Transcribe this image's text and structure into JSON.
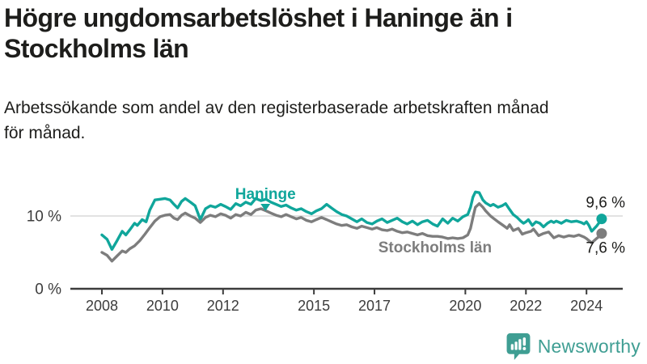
{
  "header": {
    "title_lines": [
      "Högre ungdomsarbetslöshet i Haninge än i",
      "Stockholms län"
    ],
    "subtitle_lines": [
      "Arbetssökande som andel av den registerbaserade arbetskraften månad",
      "för månad."
    ]
  },
  "chart_data": {
    "type": "line",
    "title": "Högre ungdomsarbetslöshet i Haninge än i Stockholms län",
    "subtitle": "Arbetssökande som andel av den registerbaserade arbetskraften månad för månad.",
    "xlabel": "",
    "ylabel": "",
    "grid": "y-10-only",
    "legend_position": "inline-annotations",
    "x_axis": {
      "range": [
        2007.85,
        2024.75
      ],
      "ticks": [
        2008,
        2010,
        2012,
        2015,
        2017,
        2020,
        2022,
        2024
      ]
    },
    "y_axis": {
      "range": [
        0,
        15
      ],
      "ticks": [
        {
          "value": 0,
          "label": "0 %"
        },
        {
          "value": 10,
          "label": "10 %"
        }
      ]
    },
    "annotations": [
      {
        "label": "Haninge",
        "x_year": 2013.4,
        "y_value": 13.0,
        "arrow": true,
        "color": "#10a69b"
      },
      {
        "label": "Stockholms län",
        "x_year": 2019.0,
        "y_value": 5.65,
        "arrow": false,
        "color": "#7d7d7d"
      }
    ],
    "series": [
      {
        "name": "Haninge",
        "color": "#10a69b",
        "end_label": "9,6 %",
        "end_value": 9.6,
        "end_label_placement": "above",
        "points": [
          [
            2008.0,
            7.4
          ],
          [
            2008.17,
            6.8
          ],
          [
            2008.33,
            5.4
          ],
          [
            2008.5,
            6.6
          ],
          [
            2008.67,
            7.9
          ],
          [
            2008.79,
            7.4
          ],
          [
            2008.92,
            8.1
          ],
          [
            2009.08,
            9.0
          ],
          [
            2009.17,
            8.7
          ],
          [
            2009.33,
            9.5
          ],
          [
            2009.46,
            9.2
          ],
          [
            2009.58,
            10.8
          ],
          [
            2009.75,
            12.2
          ],
          [
            2009.92,
            12.3
          ],
          [
            2010.08,
            12.4
          ],
          [
            2010.25,
            12.2
          ],
          [
            2010.38,
            11.6
          ],
          [
            2010.5,
            11.1
          ],
          [
            2010.63,
            12.0
          ],
          [
            2010.75,
            12.4
          ],
          [
            2010.92,
            11.9
          ],
          [
            2011.08,
            11.4
          ],
          [
            2011.25,
            9.5
          ],
          [
            2011.42,
            11.0
          ],
          [
            2011.58,
            11.4
          ],
          [
            2011.75,
            11.2
          ],
          [
            2011.92,
            11.6
          ],
          [
            2012.08,
            11.3
          ],
          [
            2012.25,
            10.9
          ],
          [
            2012.42,
            11.7
          ],
          [
            2012.58,
            11.4
          ],
          [
            2012.75,
            11.9
          ],
          [
            2012.92,
            11.6
          ],
          [
            2013.08,
            12.4
          ],
          [
            2013.25,
            12.1
          ],
          [
            2013.42,
            12.3
          ],
          [
            2013.58,
            11.9
          ],
          [
            2013.75,
            11.6
          ],
          [
            2013.92,
            11.3
          ],
          [
            2014.08,
            11.5
          ],
          [
            2014.25,
            11.1
          ],
          [
            2014.42,
            10.8
          ],
          [
            2014.58,
            11.0
          ],
          [
            2014.75,
            10.6
          ],
          [
            2014.92,
            10.3
          ],
          [
            2015.08,
            10.7
          ],
          [
            2015.25,
            11.0
          ],
          [
            2015.42,
            11.6
          ],
          [
            2015.58,
            11.1
          ],
          [
            2015.75,
            10.6
          ],
          [
            2015.92,
            10.2
          ],
          [
            2016.08,
            10.0
          ],
          [
            2016.25,
            9.6
          ],
          [
            2016.42,
            9.2
          ],
          [
            2016.58,
            9.6
          ],
          [
            2016.75,
            9.1
          ],
          [
            2016.92,
            8.9
          ],
          [
            2017.08,
            9.3
          ],
          [
            2017.25,
            9.6
          ],
          [
            2017.42,
            9.1
          ],
          [
            2017.58,
            9.4
          ],
          [
            2017.75,
            9.7
          ],
          [
            2017.92,
            9.2
          ],
          [
            2018.08,
            8.9
          ],
          [
            2018.25,
            9.3
          ],
          [
            2018.42,
            8.8
          ],
          [
            2018.58,
            9.2
          ],
          [
            2018.75,
            9.4
          ],
          [
            2018.92,
            8.9
          ],
          [
            2019.08,
            8.6
          ],
          [
            2019.25,
            9.6
          ],
          [
            2019.42,
            9.0
          ],
          [
            2019.58,
            9.7
          ],
          [
            2019.75,
            9.3
          ],
          [
            2019.92,
            9.9
          ],
          [
            2020.08,
            10.2
          ],
          [
            2020.17,
            11.2
          ],
          [
            2020.25,
            12.6
          ],
          [
            2020.33,
            13.3
          ],
          [
            2020.46,
            13.2
          ],
          [
            2020.58,
            12.2
          ],
          [
            2020.67,
            11.8
          ],
          [
            2020.83,
            11.4
          ],
          [
            2020.92,
            11.6
          ],
          [
            2021.08,
            11.2
          ],
          [
            2021.21,
            11.4
          ],
          [
            2021.33,
            11.7
          ],
          [
            2021.46,
            10.9
          ],
          [
            2021.58,
            10.2
          ],
          [
            2021.71,
            9.8
          ],
          [
            2021.83,
            9.3
          ],
          [
            2021.92,
            9.0
          ],
          [
            2022.0,
            9.2
          ],
          [
            2022.08,
            9.5
          ],
          [
            2022.21,
            8.7
          ],
          [
            2022.33,
            9.2
          ],
          [
            2022.46,
            9.0
          ],
          [
            2022.58,
            8.5
          ],
          [
            2022.71,
            9.0
          ],
          [
            2022.83,
            9.3
          ],
          [
            2022.92,
            9.1
          ],
          [
            2023.0,
            9.3
          ],
          [
            2023.17,
            9.0
          ],
          [
            2023.33,
            9.4
          ],
          [
            2023.5,
            9.2
          ],
          [
            2023.67,
            9.3
          ],
          [
            2023.83,
            9.1
          ],
          [
            2023.92,
            8.9
          ],
          [
            2024.0,
            9.2
          ],
          [
            2024.08,
            8.7
          ],
          [
            2024.17,
            7.9
          ],
          [
            2024.33,
            8.6
          ],
          [
            2024.42,
            9.1
          ],
          [
            2024.5,
            9.6
          ]
        ]
      },
      {
        "name": "Stockholms län",
        "color": "#7d7d7d",
        "end_label": "7,6 %",
        "end_value": 7.6,
        "end_label_placement": "below",
        "points": [
          [
            2008.0,
            5.0
          ],
          [
            2008.17,
            4.6
          ],
          [
            2008.33,
            3.8
          ],
          [
            2008.5,
            4.5
          ],
          [
            2008.67,
            5.2
          ],
          [
            2008.79,
            5.0
          ],
          [
            2008.92,
            5.5
          ],
          [
            2009.08,
            5.9
          ],
          [
            2009.25,
            6.6
          ],
          [
            2009.42,
            7.5
          ],
          [
            2009.58,
            8.4
          ],
          [
            2009.75,
            9.3
          ],
          [
            2009.92,
            9.9
          ],
          [
            2010.08,
            10.1
          ],
          [
            2010.25,
            10.2
          ],
          [
            2010.38,
            9.7
          ],
          [
            2010.5,
            9.5
          ],
          [
            2010.63,
            10.1
          ],
          [
            2010.75,
            10.4
          ],
          [
            2010.92,
            10.0
          ],
          [
            2011.08,
            9.7
          ],
          [
            2011.25,
            9.1
          ],
          [
            2011.42,
            9.8
          ],
          [
            2011.58,
            10.1
          ],
          [
            2011.75,
            9.9
          ],
          [
            2011.92,
            10.3
          ],
          [
            2012.08,
            10.1
          ],
          [
            2012.25,
            9.7
          ],
          [
            2012.42,
            10.2
          ],
          [
            2012.58,
            10.0
          ],
          [
            2012.75,
            10.5
          ],
          [
            2012.92,
            10.2
          ],
          [
            2013.08,
            10.8
          ],
          [
            2013.25,
            11.0
          ],
          [
            2013.42,
            10.7
          ],
          [
            2013.58,
            10.4
          ],
          [
            2013.75,
            10.1
          ],
          [
            2013.92,
            9.9
          ],
          [
            2014.08,
            10.2
          ],
          [
            2014.25,
            9.9
          ],
          [
            2014.42,
            9.6
          ],
          [
            2014.58,
            9.8
          ],
          [
            2014.75,
            9.4
          ],
          [
            2014.92,
            9.2
          ],
          [
            2015.08,
            9.5
          ],
          [
            2015.25,
            9.8
          ],
          [
            2015.42,
            9.5
          ],
          [
            2015.58,
            9.2
          ],
          [
            2015.75,
            8.9
          ],
          [
            2015.92,
            8.7
          ],
          [
            2016.08,
            8.8
          ],
          [
            2016.25,
            8.5
          ],
          [
            2016.42,
            8.3
          ],
          [
            2016.58,
            8.6
          ],
          [
            2016.75,
            8.4
          ],
          [
            2016.92,
            8.2
          ],
          [
            2017.08,
            8.4
          ],
          [
            2017.25,
            8.1
          ],
          [
            2017.42,
            8.0
          ],
          [
            2017.58,
            8.2
          ],
          [
            2017.75,
            7.9
          ],
          [
            2017.92,
            7.7
          ],
          [
            2018.08,
            7.8
          ],
          [
            2018.25,
            7.6
          ],
          [
            2018.42,
            7.4
          ],
          [
            2018.58,
            7.6
          ],
          [
            2018.75,
            7.3
          ],
          [
            2018.92,
            7.2
          ],
          [
            2019.08,
            7.2
          ],
          [
            2019.25,
            7.1
          ],
          [
            2019.42,
            6.9
          ],
          [
            2019.58,
            7.0
          ],
          [
            2019.75,
            6.9
          ],
          [
            2019.92,
            7.0
          ],
          [
            2020.08,
            7.4
          ],
          [
            2020.17,
            8.3
          ],
          [
            2020.25,
            9.8
          ],
          [
            2020.33,
            11.2
          ],
          [
            2020.46,
            11.7
          ],
          [
            2020.58,
            11.2
          ],
          [
            2020.67,
            10.7
          ],
          [
            2020.83,
            10.0
          ],
          [
            2020.92,
            9.7
          ],
          [
            2021.08,
            9.2
          ],
          [
            2021.25,
            8.7
          ],
          [
            2021.38,
            8.3
          ],
          [
            2021.46,
            8.8
          ],
          [
            2021.58,
            8.0
          ],
          [
            2021.75,
            8.3
          ],
          [
            2021.88,
            7.5
          ],
          [
            2022.0,
            7.7
          ],
          [
            2022.17,
            7.9
          ],
          [
            2022.25,
            8.2
          ],
          [
            2022.42,
            7.3
          ],
          [
            2022.58,
            7.6
          ],
          [
            2022.75,
            7.8
          ],
          [
            2022.92,
            7.0
          ],
          [
            2023.08,
            7.3
          ],
          [
            2023.25,
            7.1
          ],
          [
            2023.42,
            7.3
          ],
          [
            2023.58,
            7.2
          ],
          [
            2023.75,
            7.4
          ],
          [
            2023.92,
            7.1
          ],
          [
            2024.0,
            6.9
          ],
          [
            2024.17,
            6.3
          ],
          [
            2024.33,
            6.9
          ],
          [
            2024.42,
            7.2
          ],
          [
            2024.5,
            7.6
          ]
        ]
      }
    ],
    "colors": {
      "axis": "#3c3c3c",
      "tick_text": "#3c3c3c",
      "gridline": "#d9d9d9",
      "end_label_text": "#1d1d1b"
    }
  },
  "branding": {
    "name": "Newsworthy",
    "icon": "newsworthy-speech-bubble-chart-icon",
    "color": "#3f9e93"
  }
}
